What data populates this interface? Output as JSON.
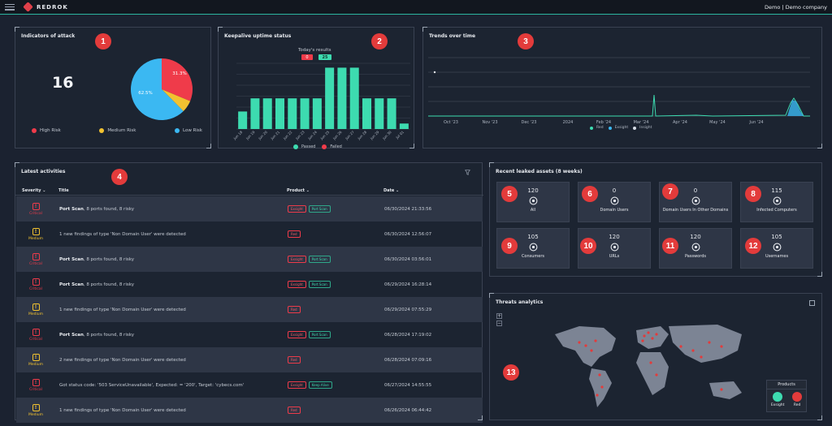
{
  "app": {
    "brand": "REDROK",
    "user": "Demo | Demo company"
  },
  "colors": {
    "accent": "#2bb5a0",
    "high": "#ef3b4a",
    "medium": "#f2c230",
    "low": "#3bb8f2",
    "passed": "#3ddbb0"
  },
  "badges": [
    "1",
    "2",
    "3",
    "4",
    "5",
    "6",
    "7",
    "8",
    "9",
    "10",
    "11",
    "12",
    "13"
  ],
  "indicators": {
    "title": "Indicators of attack",
    "count": "16",
    "pie": {
      "high_pct": 31.3,
      "medium_pct": 6.3,
      "low_pct": 62.5,
      "high_label": "31.3%",
      "low_label": "62.5%"
    },
    "legend": {
      "high": "High Risk",
      "medium": "Medium Risk",
      "low": "Low Risk"
    }
  },
  "keepalive": {
    "title": "Keepalive uptime status",
    "today_label": "Today's results",
    "today_failed": "0",
    "today_passed": "25",
    "legend": {
      "passed": "Passed",
      "failed": "Failed"
    }
  },
  "chart_data": {
    "type": "bar",
    "categories": [
      "Jun 18",
      "Jun 19",
      "Jun 20",
      "Jun 21",
      "Jun 22",
      "Jun 23",
      "Jun 24",
      "Jun 25",
      "Jun 26",
      "Jun 27",
      "Jun 28",
      "Jun 29",
      "Jun 30",
      "Jul 01"
    ],
    "series": [
      {
        "name": "Passed",
        "values": [
          80,
          140,
          140,
          140,
          140,
          140,
          140,
          280,
          280,
          280,
          140,
          140,
          140,
          25
        ]
      },
      {
        "name": "Failed",
        "values": [
          0,
          0,
          0,
          0,
          0,
          0,
          0,
          0,
          0,
          0,
          0,
          0,
          0,
          0
        ]
      }
    ],
    "ylim": [
      0,
      300
    ]
  },
  "trends": {
    "title": "Trends over time",
    "ticks": [
      "Oct '23",
      "Nov '23",
      "Dec '23",
      "2024",
      "Feb '24",
      "Mar '24",
      "Apr '24",
      "May '24",
      "Jun '24"
    ],
    "legend": {
      "red": "Red",
      "exsight": "Exsight",
      "insight": "Insight"
    }
  },
  "activities": {
    "title": "Latest activities",
    "headers": {
      "severity": "Severity",
      "title": "Title",
      "product": "Product",
      "date": "Date"
    },
    "rows": [
      {
        "severity": "Critical",
        "bold": "Port Scan",
        "title": ", 8 ports found, 8 risky",
        "products": [
          "Exsight",
          "Port Scan"
        ],
        "date": "06/30/2024 21:33:56"
      },
      {
        "severity": "Medium",
        "bold": "",
        "title": "1 new findings of type 'Non Domain User' were detected",
        "products": [
          "Red"
        ],
        "date": "06/30/2024 12:56:07"
      },
      {
        "severity": "Critical",
        "bold": "Port Scan",
        "title": ", 8 ports found, 8 risky",
        "products": [
          "Exsight",
          "Port Scan"
        ],
        "date": "06/30/2024 03:56:01"
      },
      {
        "severity": "Critical",
        "bold": "Port Scan",
        "title": ", 8 ports found, 8 risky",
        "products": [
          "Exsight",
          "Port Scan"
        ],
        "date": "06/29/2024 16:28:14"
      },
      {
        "severity": "Medium",
        "bold": "",
        "title": "1 new findings of type 'Non Domain User' were detected",
        "products": [
          "Red"
        ],
        "date": "06/29/2024 07:55:29"
      },
      {
        "severity": "Critical",
        "bold": "Port Scan",
        "title": ", 8 ports found, 8 risky",
        "products": [
          "Exsight",
          "Port Scan"
        ],
        "date": "06/28/2024 17:19:02"
      },
      {
        "severity": "Medium",
        "bold": "",
        "title": "2 new findings of type 'Non Domain User' were detected",
        "products": [
          "Red"
        ],
        "date": "06/28/2024 07:09:16"
      },
      {
        "severity": "Critical",
        "bold": "",
        "title": "Got status code: '503 ServiceUnavailable', Expected: = '200', Target: 'cybecs.com'",
        "products": [
          "Exsight",
          "Keep Alive"
        ],
        "date": "06/27/2024 14:55:55"
      },
      {
        "severity": "Medium",
        "bold": "",
        "title": "1 new findings of type 'Non Domain User' were detected",
        "products": [
          "Red"
        ],
        "date": "06/26/2024 06:44:42"
      }
    ]
  },
  "leaked": {
    "title": "Recent leaked assets (8 weeks)",
    "tiles": [
      {
        "count": "120",
        "label": "All",
        "icon": "globe-icon"
      },
      {
        "count": "0",
        "label": "Domain Users",
        "icon": "users-icon"
      },
      {
        "count": "0",
        "label": "Domain Users In Other Domains",
        "icon": "bug-icon"
      },
      {
        "count": "115",
        "label": "Infected Computers",
        "icon": "chip-icon"
      },
      {
        "count": "105",
        "label": "Consumers",
        "icon": "user-circle-icon"
      },
      {
        "count": "120",
        "label": "URLs",
        "icon": "link-icon"
      },
      {
        "count": "120",
        "label": "Passwords",
        "icon": "password-icon"
      },
      {
        "count": "105",
        "label": "Usernames",
        "icon": "person-icon"
      }
    ]
  },
  "threats": {
    "title": "Threats analytics",
    "products_title": "Products",
    "products": [
      "Exsight",
      "Red"
    ]
  }
}
